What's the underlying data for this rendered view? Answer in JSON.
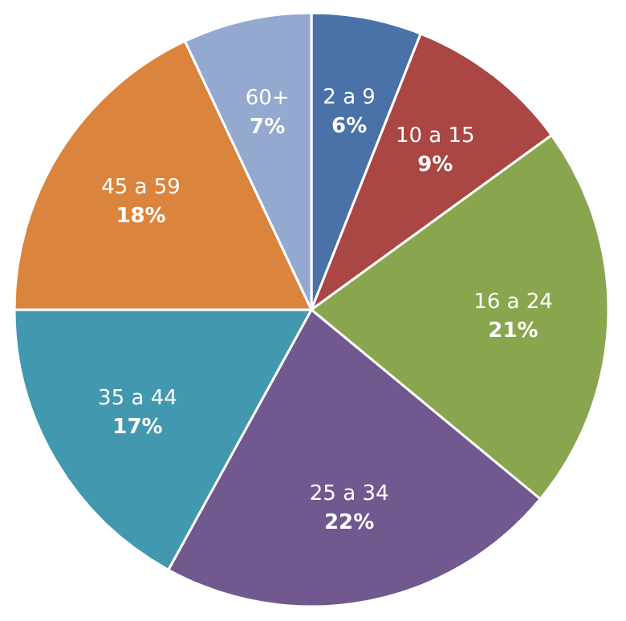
{
  "chart_data": {
    "type": "pie",
    "categories": [
      "2 a 9",
      "10 a 15",
      "16 a 24",
      "25 a 34",
      "35 a 44",
      "45 a 59",
      "60+"
    ],
    "values": [
      6,
      9,
      21,
      22,
      17,
      18,
      7
    ],
    "value_labels": [
      "6%",
      "9%",
      "21%",
      "22%",
      "17%",
      "18%",
      "7%"
    ],
    "colors": [
      "#4a72a8",
      "#aa4643",
      "#89a54e",
      "#71588f",
      "#4198af",
      "#db843d",
      "#93a9cf"
    ]
  }
}
